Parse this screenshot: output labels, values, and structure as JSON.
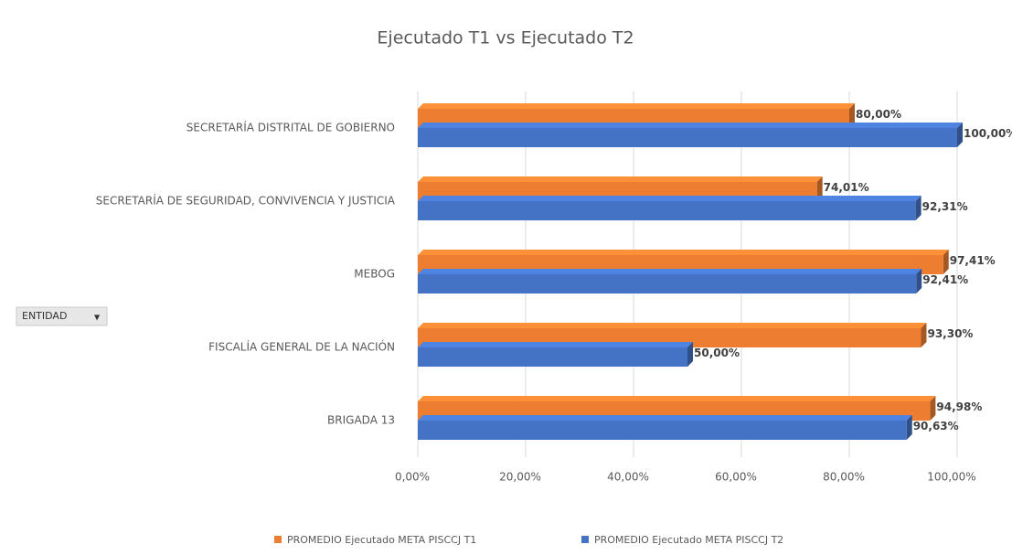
{
  "chart_data": {
    "type": "bar",
    "orientation": "horizontal",
    "title": "Ejecutado T1 vs Ejecutado T2",
    "field_button": "ENTIDAD",
    "categories": [
      "SECRETARÍA DISTRITAL DE GOBIERNO",
      "SECRETARÍA DE SEGURIDAD, CONVIVENCIA Y JUSTICIA",
      "MEBOG",
      "FISCALÍA GENERAL DE LA NACIÓN",
      "BRIGADA 13"
    ],
    "series": [
      {
        "name": "PROMEDIO Ejecutado META PISCCJ T1",
        "color": "#ed7d31",
        "values": [
          80,
          74.01,
          97.41,
          93.3,
          94.98
        ],
        "value_labels": [
          "80,00%",
          "74,01%",
          "97,41%",
          "93,30%",
          "94,98%"
        ]
      },
      {
        "name": "PROMEDIO Ejecutado META PISCCJ T2",
        "color": "#4472c4",
        "values": [
          100,
          92.31,
          92.41,
          50,
          90.63
        ],
        "value_labels": [
          "100,00%",
          "92,31%",
          "92,41%",
          "50,00%",
          "90,63%"
        ]
      }
    ],
    "xlim": [
      0,
      100
    ],
    "xticks": [
      {
        "value": 0,
        "label": "0,00%"
      },
      {
        "value": 20,
        "label": "20,00%"
      },
      {
        "value": 40,
        "label": "40,00%"
      },
      {
        "value": 60,
        "label": "60,00%"
      },
      {
        "value": 80,
        "label": "80,00%"
      },
      {
        "value": 100,
        "label": "100,00%"
      }
    ],
    "grid": true,
    "legend": "bottom"
  }
}
